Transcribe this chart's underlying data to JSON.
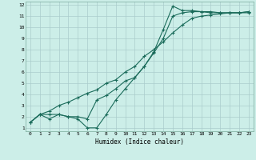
{
  "title": "",
  "xlabel": "Humidex (Indice chaleur)",
  "bg_color": "#cceee8",
  "grid_color": "#aacccc",
  "line_color": "#1a6b5a",
  "xlim": [
    -0.5,
    23.5
  ],
  "ylim": [
    0.7,
    12.3
  ],
  "xticks": [
    0,
    1,
    2,
    3,
    4,
    5,
    6,
    7,
    8,
    9,
    10,
    11,
    12,
    13,
    14,
    15,
    16,
    17,
    18,
    19,
    20,
    21,
    22,
    23
  ],
  "yticks": [
    1,
    2,
    3,
    4,
    5,
    6,
    7,
    8,
    9,
    10,
    11,
    12
  ],
  "line1_x": [
    0,
    1,
    2,
    3,
    4,
    5,
    6,
    7,
    8,
    9,
    10,
    11,
    12,
    13,
    14,
    15,
    16,
    17,
    18,
    19,
    20,
    21,
    22,
    23
  ],
  "line1_y": [
    1.5,
    2.2,
    2.5,
    3.0,
    3.3,
    3.7,
    4.1,
    4.4,
    5.0,
    5.3,
    6.0,
    6.5,
    7.4,
    8.0,
    8.7,
    9.5,
    10.2,
    10.8,
    11.0,
    11.1,
    11.2,
    11.3,
    11.3,
    11.4
  ],
  "line2_x": [
    0,
    1,
    2,
    3,
    4,
    5,
    6,
    7,
    8,
    9,
    10,
    11,
    12,
    13,
    14,
    15,
    16,
    17,
    18,
    19,
    20,
    21,
    22,
    23
  ],
  "line2_y": [
    1.5,
    2.2,
    2.2,
    2.2,
    2.0,
    2.0,
    1.8,
    3.5,
    3.9,
    4.5,
    5.2,
    5.5,
    6.5,
    7.7,
    9.0,
    11.0,
    11.3,
    11.4,
    11.4,
    11.4,
    11.3,
    11.3,
    11.3,
    11.3
  ],
  "line3_x": [
    0,
    1,
    2,
    3,
    4,
    5,
    6,
    7,
    8,
    9,
    10,
    11,
    12,
    13,
    14,
    15,
    16,
    17,
    18,
    19,
    20,
    21,
    22,
    23
  ],
  "line3_y": [
    1.5,
    2.2,
    1.8,
    2.2,
    2.0,
    1.8,
    1.0,
    1.0,
    2.2,
    3.5,
    4.5,
    5.5,
    6.5,
    7.8,
    9.8,
    11.9,
    11.5,
    11.5,
    11.4,
    11.3,
    11.3,
    11.3,
    11.3,
    11.4
  ]
}
